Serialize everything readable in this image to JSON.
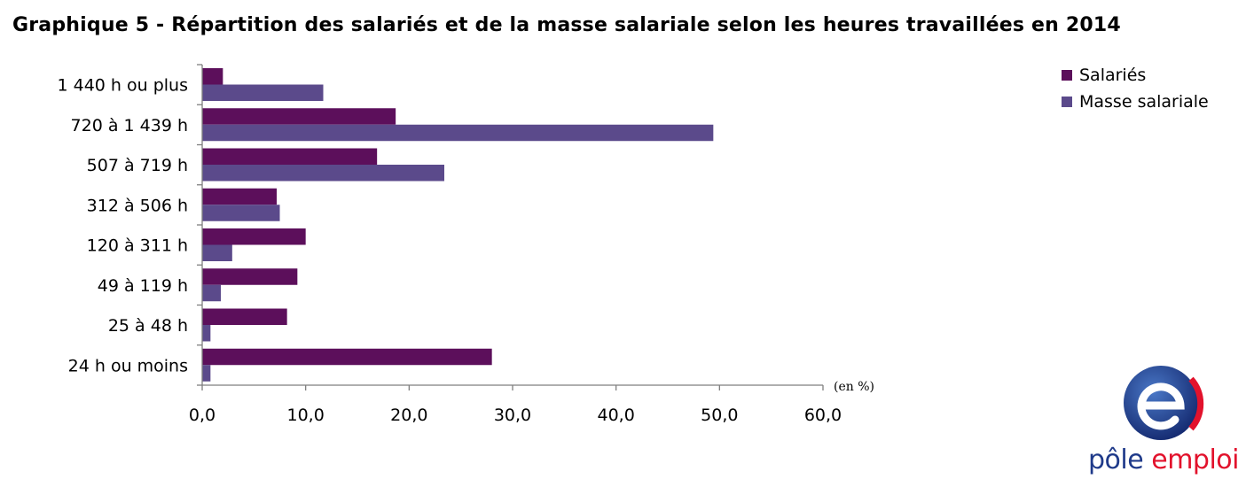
{
  "title": "Graphique 5 - Répartition des salariés et de la masse salariale selon les heures travaillées en 2014",
  "unit_label": "(en %)",
  "logo": {
    "word1": "pôle",
    "word2": "emploi"
  },
  "colors": {
    "salaries": "#5c0f5b",
    "masse": "#5b4a8b",
    "axis": "#7f7f7f"
  },
  "chart_data": {
    "type": "bar",
    "orientation": "horizontal",
    "categories": [
      "1 440 h ou plus",
      "720 à 1 439 h",
      "507 à 719 h",
      "312 à 506 h",
      "120 à 311 h",
      "49 à 119 h",
      "25 à 48 h",
      "24 h ou moins"
    ],
    "series": [
      {
        "name": "Salariés",
        "values": [
          2.0,
          18.7,
          16.9,
          7.2,
          10.0,
          9.2,
          8.2,
          28.0
        ]
      },
      {
        "name": "Masse salariale",
        "values": [
          11.7,
          49.4,
          23.4,
          7.5,
          2.9,
          1.8,
          0.8,
          0.8
        ]
      }
    ],
    "xlim": [
      0,
      60
    ],
    "xticks": [
      "0,0",
      "10,0",
      "20,0",
      "30,0",
      "40,0",
      "50,0",
      "60,0"
    ],
    "grid": false,
    "legend_position": "top-right"
  }
}
